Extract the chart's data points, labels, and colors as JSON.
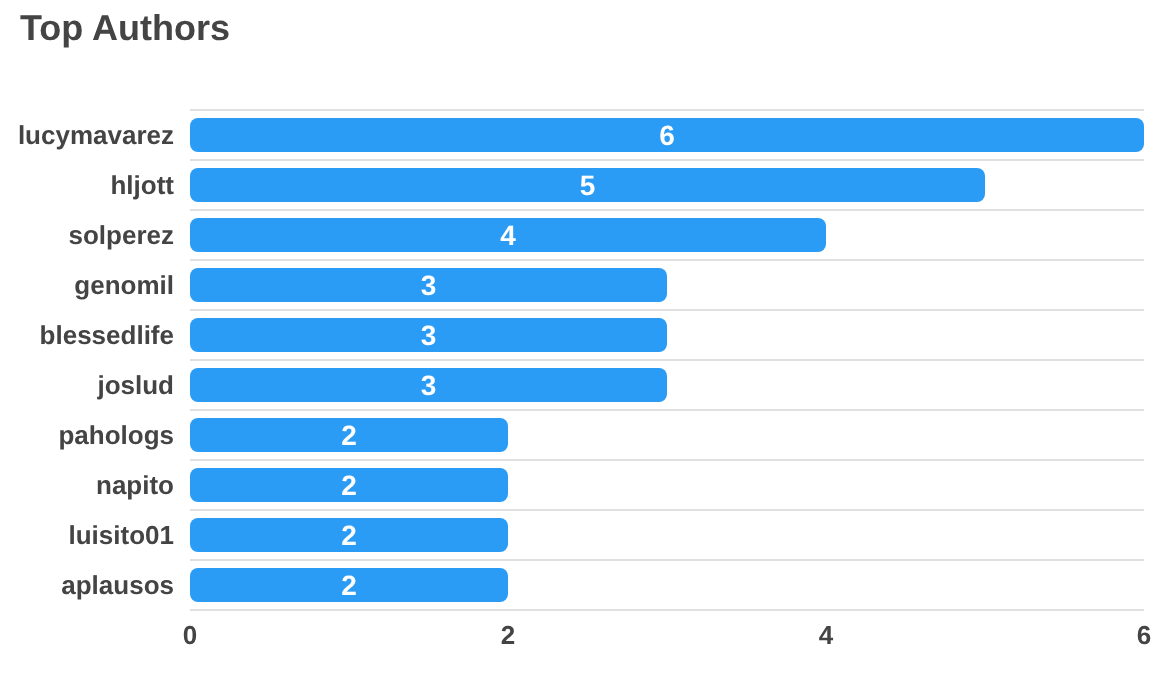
{
  "chart_data": {
    "type": "bar",
    "orientation": "horizontal",
    "title": "Top Authors",
    "categories": [
      "lucymavarez",
      "hljott",
      "solperez",
      "genomil",
      "blessedlife",
      "joslud",
      "pahologs",
      "napito",
      "luisito01",
      "aplausos"
    ],
    "values": [
      6,
      5,
      4,
      3,
      3,
      3,
      2,
      2,
      2,
      2
    ],
    "color": "#2b9cf5",
    "xlim": [
      0,
      6
    ],
    "xticks": [
      0,
      2,
      4,
      6
    ],
    "grid": "y",
    "data_labels": true
  }
}
